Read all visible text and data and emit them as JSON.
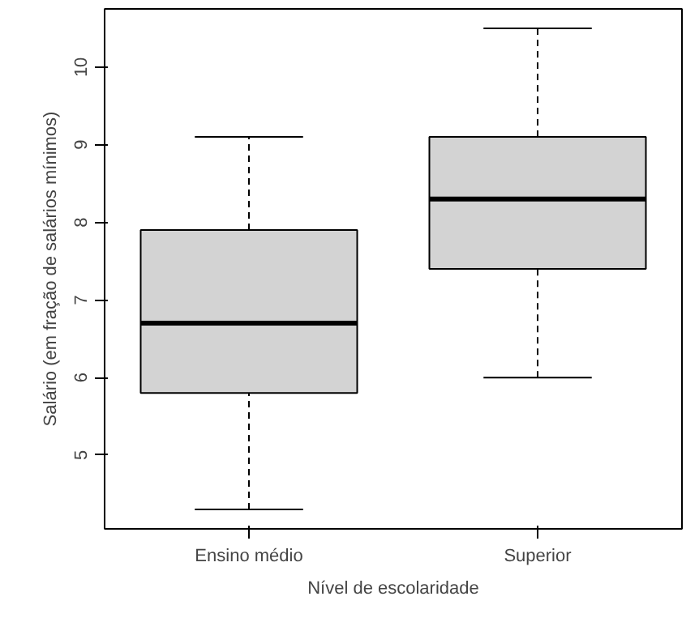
{
  "chart_data": {
    "type": "box",
    "xlabel": "Nível de escolaridade",
    "ylabel": "Salário (em fração de salários mínimos)",
    "categories": [
      "Ensino médio",
      "Superior"
    ],
    "boxes": [
      {
        "low": 4.3,
        "q1": 5.8,
        "median": 6.7,
        "q3": 7.9,
        "high": 9.1
      },
      {
        "low": 6.0,
        "q1": 7.4,
        "median": 8.3,
        "q3": 9.1,
        "high": 10.5
      }
    ],
    "color": "#d3d3d3",
    "ylim": [
      4.05,
      10.75
    ],
    "yticks": [
      5,
      6,
      7,
      8,
      9,
      10
    ],
    "grid": false
  }
}
